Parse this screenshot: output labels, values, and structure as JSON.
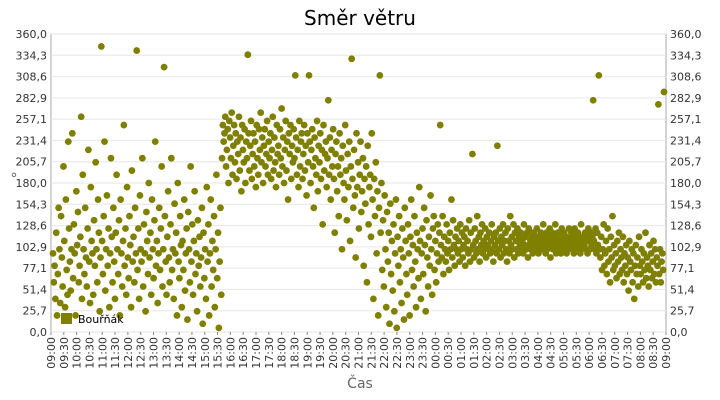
{
  "chart_data": {
    "type": "scatter",
    "title": "Směr větru",
    "xlabel": "Čas",
    "ylabel": "°",
    "ylim": [
      0,
      360
    ],
    "y_ticks": [
      "0,0",
      "25,7",
      "51,4",
      "77,1",
      "102,9",
      "128,6",
      "154,3",
      "180,0",
      "205,7",
      "231,4",
      "257,1",
      "282,9",
      "308,6",
      "334,3",
      "360,0"
    ],
    "x_ticks": [
      "09:00",
      "09:30",
      "10:00",
      "10:30",
      "11:00",
      "11:30",
      "12:00",
      "12:30",
      "13:00",
      "13:30",
      "14:00",
      "14:30",
      "15:00",
      "15:30",
      "16:00",
      "16:30",
      "17:00",
      "17:30",
      "18:00",
      "18:30",
      "19:00",
      "19:30",
      "20:00",
      "20:30",
      "21:00",
      "21:30",
      "22:00",
      "22:30",
      "23:00",
      "23:30",
      "00:00",
      "00:30",
      "01:00",
      "01:30",
      "02:00",
      "02:30",
      "03:00",
      "03:30",
      "04:00",
      "04:30",
      "05:00",
      "05:30",
      "06:00",
      "06:30",
      "07:00",
      "07:30",
      "08:00",
      "08:30",
      "09:00"
    ],
    "grid": "horizontal",
    "legend": "bottom-left",
    "series": [
      {
        "name": "Bouřňák",
        "color": "#808000",
        "sample_minutes": 3,
        "values": [
          95,
          60,
          80,
          40,
          120,
          20,
          70,
          150,
          100,
          35,
          140,
          90,
          55,
          200,
          110,
          30,
          160,
          75,
          45,
          230,
          125,
          85,
          50,
          100,
          240,
          65,
          130,
          95,
          20,
          170,
          105,
          145,
          60,
          80,
          115,
          260,
          40,
          190,
          100,
          70,
          150,
          90,
          55,
          125,
          220,
          85,
          35,
          175,
          110,
          95,
          45,
          135,
          80,
          205,
          100,
          60,
          160,
          120,
          25,
          90,
          345,
          110,
          70,
          140,
          230,
          50,
          100,
          165,
          80,
          125,
          30,
          95,
          210,
          115,
          60,
          150,
          85,
          40,
          120,
          190,
          100,
          70,
          135,
          20,
          160,
          95,
          55,
          110,
          250,
          80,
          125,
          45,
          175,
          90,
          65,
          140,
          105,
          30,
          195,
          85,
          115,
          60,
          150,
          95,
          340,
          75,
          125,
          40,
          165,
          100,
          85,
          210,
          55,
          130,
          95,
          25,
          145,
          110,
          70,
          180,
          90,
          120,
          45,
          160,
          100,
          65,
          135,
          230,
          80,
          110,
          35,
          95,
          150,
          75,
          125,
          200,
          55,
          100,
          320,
          140,
          85,
          45,
          115,
          170,
          90,
          60,
          130,
          210,
          75,
          100,
          40,
          155,
          95,
          120,
          20,
          180,
          85,
          65,
          140,
          105,
          30,
          110,
          75,
          160,
          50,
          95,
          125,
          15,
          145,
          100,
          60,
          200,
          85,
          130,
          45,
          110,
          170,
          70,
          95,
          25,
          135,
          80,
          115,
          55,
          90,
          150,
          10,
          120,
          65,
          100,
          40,
          175,
          85,
          130,
          20,
          95,
          160,
          55,
          110,
          75,
          140,
          30,
          100,
          190,
          65,
          120,
          5,
          85,
          150,
          45,
          210,
          250,
          230,
          240,
          260,
          200,
          220,
          245,
          180,
          255,
          235,
          210,
          265,
          190,
          225,
          250,
          205,
          240,
          185,
          230,
          215,
          260,
          195,
          235,
          170,
          250,
          220,
          205,
          245,
          180,
          230,
          210,
          335,
          240,
          195,
          225,
          255,
          185,
          215,
          240,
          200,
          230,
          175,
          250,
          210,
          190,
          245,
          220,
          265,
          205,
          235,
          180,
          225,
          245,
          200,
          215,
          255,
          190,
          230,
          210,
          240,
          185,
          220,
          260,
          195,
          235,
          205,
          175,
          250,
          215,
          225,
          190,
          245,
          210,
          270,
          200,
          235,
          180,
          220,
          255,
          195,
          230,
          160,
          240,
          215,
          250,
          185,
          225,
          205,
          245,
          210,
          310,
          235,
          190,
          220,
          175,
          255,
          200,
          230,
          240,
          185,
          215,
          250,
          195,
          225,
          165,
          240,
          205,
          310,
          230,
          180,
          220,
          245,
          200,
          150,
          235,
          210,
          190,
          255,
          170,
          225,
          205,
          240,
          185,
          220,
          130,
          250,
          195,
          215,
          230,
          175,
          210,
          280,
          190,
          235,
          160,
          220,
          200,
          245,
          185,
          120,
          215,
          230,
          170,
          200,
          140,
          240,
          190,
          210,
          100,
          225,
          180,
          160,
          250,
          195,
          135,
          215,
          175,
          230,
          110,
          200,
          330,
          185,
          150,
          220,
          165,
          90,
          240,
          175,
          205,
          125,
          190,
          230,
          145,
          170,
          210,
          80,
          185,
          155,
          200,
          60,
          225,
          130,
          175,
          190,
          115,
          240,
          160,
          40,
          185,
          140,
          205,
          95,
          170,
          20,
          150,
          310,
          120,
          180,
          75,
          135,
          55,
          165,
          100,
          30,
          145,
          85,
          120,
          10,
          155,
          70,
          110,
          50,
          130,
          25,
          95,
          160,
          5,
          115,
          80,
          140,
          60,
          100,
          35,
          125,
          90,
          15,
          150,
          110,
          70,
          45,
          130,
          95,
          20,
          115,
          160,
          75,
          105,
          55,
          140,
          85,
          30,
          120,
          100,
          65,
          175,
          110,
          40,
          95,
          125,
          70,
          150,
          105,
          25,
          135,
          90,
          55,
          115,
          80,
          165,
          100,
          45,
          125,
          140,
          75,
          110,
          60,
          95,
          130,
          85,
          120,
          250,
          105,
          90,
          140,
          70,
          115,
          100,
          85,
          130,
          95,
          110,
          75,
          120,
          100,
          160,
          90,
          135,
          105,
          80,
          115,
          100,
          125,
          95,
          110,
          85,
          130,
          100,
          120,
          90,
          105,
          115,
          80,
          125,
          100,
          110,
          95,
          135,
          85,
          120,
          100,
          215,
          105,
          90,
          125,
          110,
          95,
          140,
          100,
          115,
          85,
          120,
          105,
          130,
          95,
          110,
          100,
          125,
          90,
          115,
          105,
          100,
          120,
          95,
          110,
          130,
          100,
          85,
          115,
          105,
          120,
          95,
          225,
          110,
          100,
          125,
          90,
          115,
          105,
          130,
          95,
          110,
          120,
          100,
          85,
          125,
          110,
          95,
          140,
          105,
          115,
          100,
          130,
          90,
          120,
          110,
          100,
          125,
          95,
          115,
          105,
          120,
          100,
          110,
          95,
          130,
          105,
          115,
          100,
          120,
          90,
          125,
          105,
          110,
          100,
          115,
          95,
          120,
          105,
          110,
          100,
          125,
          115,
          95,
          110,
          105,
          120,
          100,
          115,
          130,
          105,
          110,
          95,
          120,
          100,
          115,
          105,
          125,
          90,
          110,
          120,
          100,
          115,
          105,
          130,
          95,
          110,
          120,
          100,
          115,
          105,
          95,
          125,
          110,
          100,
          120,
          105,
          115,
          95,
          110,
          100,
          125,
          105,
          115,
          120,
          100,
          110,
          95,
          125,
          105,
          115,
          100,
          120,
          110,
          105,
          95,
          130,
          100,
          115,
          110,
          105,
          120,
          100,
          115,
          95,
          125,
          110,
          100,
          120,
          105,
          115,
          280,
          110,
          100,
          125,
          95,
          120,
          105,
          310,
          100,
          90,
          115,
          75,
          100,
          130,
          80,
          95,
          110,
          70,
          125,
          85,
          100,
          60,
          115,
          90,
          140,
          75,
          105,
          80,
          95,
          65,
          110,
          85,
          120,
          70,
          100,
          90,
          75,
          115,
          60,
          95,
          80,
          105,
          70,
          90,
          50,
          110,
          85,
          75,
          100,
          60,
          95,
          40,
          80,
          105,
          70,
          90,
          55,
          115,
          80,
          70,
          100,
          85,
          60,
          95,
          75,
          120,
          65,
          90,
          80,
          55,
          105,
          75,
          95,
          65,
          85,
          110,
          70,
          100,
          60,
          90,
          80,
          275,
          70,
          100,
          60,
          85,
          95,
          75,
          290
        ]
      }
    ]
  }
}
